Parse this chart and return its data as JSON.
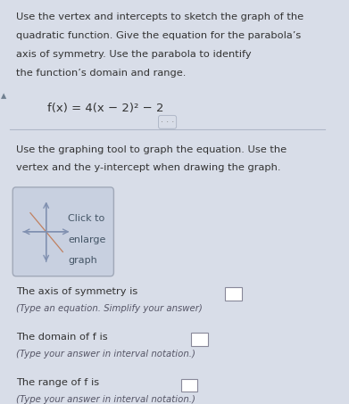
{
  "background_color": "#d8dde8",
  "title_lines": [
    "Use the vertex and intercepts to sketch the graph of the",
    "quadratic function. Give the equation for the parabola’s",
    "axis of symmetry. Use the parabola to identify",
    "the function’s domain and range."
  ],
  "formula": "f(x) = 4(x − 2)² − 2",
  "graphing_tool_text": [
    "Use the graphing tool to graph the equation. Use the",
    "vertex and the y-intercept when drawing the graph."
  ],
  "graph_box_text": [
    "Click to",
    "enlarge",
    "graph"
  ],
  "graph_box_color": "#c8d0e0",
  "graph_box_border": "#a0a8b8",
  "axis_lines_color": "#8090b0",
  "arrow_color": "#c08060",
  "text_color": "#333333",
  "sub_text_color": "#555566",
  "dots_text": "· · ·",
  "left_triangle_color": "#708090",
  "divider_color": "#b0b8c8"
}
